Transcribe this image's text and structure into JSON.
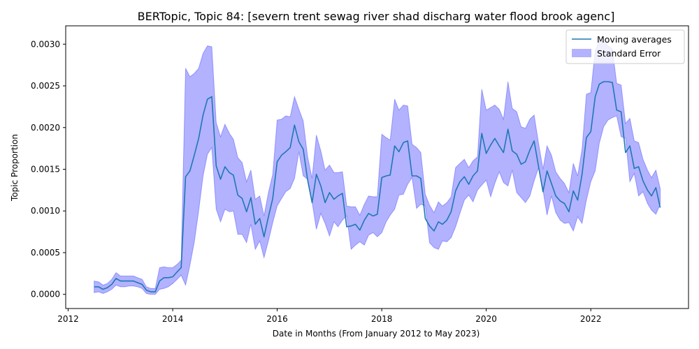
{
  "chart_data": {
    "type": "line",
    "title": "BERTopic, Topic 84: [severn trent sewag river shad discharg water flood brook agenc]",
    "xlabel": "Date in Months (From January 2012 to May 2023)",
    "ylabel": "Topic Proportion",
    "xlim": [
      "2011-12-15",
      "2023-11-15"
    ],
    "ylim": [
      -0.00017,
      0.00322
    ],
    "x_ticks": [
      "2012",
      "2014",
      "2016",
      "2018",
      "2020",
      "2022"
    ],
    "y_ticks": [
      "0.0000",
      "0.0005",
      "0.0010",
      "0.0015",
      "0.0020",
      "0.0025",
      "0.0030"
    ],
    "legend_position": "top-right",
    "grid": false,
    "colors": {
      "line": "#1f77b4",
      "band": "#0000ff"
    },
    "series": [
      {
        "name": "Moving averages",
        "kind": "line"
      },
      {
        "name": "Standard Error",
        "kind": "band"
      }
    ],
    "x": [
      "2012-07",
      "2012-08",
      "2012-09",
      "2012-10",
      "2012-11",
      "2012-12",
      "2013-01",
      "2013-02",
      "2013-03",
      "2013-04",
      "2013-05",
      "2013-06",
      "2013-07",
      "2013-08",
      "2013-09",
      "2013-10",
      "2013-11",
      "2013-12",
      "2014-01",
      "2014-02",
      "2014-03",
      "2014-04",
      "2014-05",
      "2014-06",
      "2014-07",
      "2014-08",
      "2014-09",
      "2014-10",
      "2014-11",
      "2014-12",
      "2015-01",
      "2015-02",
      "2015-03",
      "2015-04",
      "2015-05",
      "2015-06",
      "2015-07",
      "2015-08",
      "2015-09",
      "2015-10",
      "2015-11",
      "2015-12",
      "2016-01",
      "2016-02",
      "2016-03",
      "2016-04",
      "2016-05",
      "2016-06",
      "2016-07",
      "2016-08",
      "2016-09",
      "2016-10",
      "2016-11",
      "2016-12",
      "2017-01",
      "2017-02",
      "2017-03",
      "2017-04",
      "2017-05",
      "2017-06",
      "2017-07",
      "2017-08",
      "2017-09",
      "2017-10",
      "2017-11",
      "2017-12",
      "2018-01",
      "2018-02",
      "2018-03",
      "2018-04",
      "2018-05",
      "2018-06",
      "2018-07",
      "2018-08",
      "2018-09",
      "2018-10",
      "2018-11",
      "2018-12",
      "2019-01",
      "2019-02",
      "2019-03",
      "2019-04",
      "2019-05",
      "2019-06",
      "2019-07",
      "2019-08",
      "2019-09",
      "2019-10",
      "2019-11",
      "2019-12",
      "2020-01",
      "2020-02",
      "2020-03",
      "2020-04",
      "2020-05",
      "2020-06",
      "2020-07",
      "2020-08",
      "2020-09",
      "2020-10",
      "2020-11",
      "2020-12",
      "2021-01",
      "2021-02",
      "2021-03",
      "2021-04",
      "2021-05",
      "2021-06",
      "2021-07",
      "2021-08",
      "2021-09",
      "2021-10",
      "2021-11",
      "2021-12",
      "2022-01",
      "2022-02",
      "2022-03",
      "2022-04",
      "2022-05",
      "2022-06",
      "2022-07",
      "2022-08",
      "2022-09",
      "2022-10",
      "2022-11",
      "2022-12",
      "2023-01",
      "2023-02",
      "2023-03",
      "2023-04",
      "2023-05"
    ],
    "moving_average": [
      9e-05,
      9e-05,
      6e-05,
      8e-05,
      0.00012,
      0.00019,
      0.00016,
      0.00016,
      0.00016,
      0.00016,
      0.00014,
      0.00012,
      5e-05,
      3e-05,
      3e-05,
      0.00016,
      0.0002,
      0.0002,
      0.00021,
      0.00027,
      0.00032,
      0.00141,
      0.00148,
      0.00167,
      0.00187,
      0.00215,
      0.00234,
      0.00237,
      0.00154,
      0.00138,
      0.00153,
      0.00146,
      0.00143,
      0.00119,
      0.00115,
      0.00099,
      0.00116,
      0.00084,
      0.00091,
      0.00069,
      0.00093,
      0.00115,
      0.00159,
      0.00167,
      0.00171,
      0.00176,
      0.00203,
      0.00183,
      0.00174,
      0.00137,
      0.0011,
      0.00144,
      0.0013,
      0.0011,
      0.00122,
      0.00114,
      0.00118,
      0.00121,
      0.00081,
      0.00082,
      0.00084,
      0.00077,
      0.00089,
      0.00097,
      0.00094,
      0.00096,
      0.0014,
      0.00142,
      0.00143,
      0.00178,
      0.00171,
      0.00182,
      0.00184,
      0.00142,
      0.00142,
      0.00139,
      0.00091,
      0.00082,
      0.00076,
      0.00087,
      0.00084,
      0.00089,
      0.00099,
      0.00124,
      0.00135,
      0.00141,
      0.00132,
      0.00142,
      0.00148,
      0.00193,
      0.00169,
      0.00179,
      0.00187,
      0.00178,
      0.0017,
      0.00198,
      0.00172,
      0.00168,
      0.00156,
      0.00159,
      0.00173,
      0.00184,
      0.00153,
      0.00123,
      0.00148,
      0.00133,
      0.00118,
      0.00112,
      0.00109,
      0.00099,
      0.00124,
      0.00113,
      0.00144,
      0.00188,
      0.00195,
      0.00237,
      0.00252,
      0.00255,
      0.00255,
      0.00254,
      0.00221,
      0.00219,
      0.0017,
      0.00178,
      0.00151,
      0.00153,
      0.00136,
      0.00125,
      0.00118,
      0.00128,
      0.00104
    ],
    "se_lower": [
      2e-05,
      3e-05,
      1e-05,
      3e-05,
      6e-05,
      0.00011,
      9e-05,
      9e-05,
      0.0001,
      0.0001,
      9e-05,
      7e-05,
      1e-05,
      0.0,
      0.0,
      6e-05,
      7e-05,
      9e-05,
      0.00013,
      0.00018,
      0.00023,
      0.00011,
      0.00035,
      0.00063,
      0.001,
      0.00142,
      0.00168,
      0.00176,
      0.00102,
      0.00087,
      0.00102,
      0.00099,
      0.001,
      0.00072,
      0.00072,
      0.00062,
      0.00084,
      0.00054,
      0.00064,
      0.00044,
      0.00064,
      0.00086,
      0.00106,
      0.00115,
      0.00123,
      0.00127,
      0.00139,
      0.00171,
      0.00142,
      0.00138,
      0.00111,
      0.00078,
      0.00097,
      0.00085,
      0.0007,
      0.00087,
      0.00081,
      0.00089,
      0.00094,
      0.00054,
      0.00059,
      0.00063,
      0.00059,
      0.00071,
      0.00074,
      0.00069,
      0.00074,
      0.00087,
      0.00095,
      0.00102,
      0.00119,
      0.0012,
      0.00132,
      0.0014,
      0.00103,
      0.00108,
      0.00106,
      0.00062,
      0.00056,
      0.00054,
      0.00064,
      0.00063,
      0.00068,
      0.00081,
      0.00097,
      0.00113,
      0.00119,
      0.00111,
      0.00125,
      0.00131,
      0.00137,
      0.00117,
      0.00133,
      0.00147,
      0.00134,
      0.0013,
      0.00149,
      0.00122,
      0.00116,
      0.0011,
      0.00118,
      0.00136,
      0.00152,
      0.00125,
      0.00095,
      0.00118,
      0.00098,
      0.00089,
      0.00085,
      0.00086,
      0.00076,
      0.00093,
      0.00085,
      0.00113,
      0.00135,
      0.00148,
      0.00181,
      0.00201,
      0.00209,
      0.00212,
      0.00214,
      0.00189,
      0.00187,
      0.00135,
      0.00145,
      0.00118,
      0.00123,
      0.00109,
      0.00101,
      0.00096,
      0.00108,
      0.00083
    ],
    "se_upper": [
      0.00016,
      0.00015,
      0.00011,
      0.00013,
      0.00018,
      0.00026,
      0.00022,
      0.00022,
      0.00022,
      0.00022,
      0.0002,
      0.00018,
      9e-05,
      7e-05,
      7e-05,
      0.00032,
      0.00033,
      0.00032,
      0.00032,
      0.00036,
      0.00041,
      0.00271,
      0.00261,
      0.00265,
      0.00271,
      0.00289,
      0.00298,
      0.00297,
      0.00206,
      0.00189,
      0.00204,
      0.00193,
      0.00186,
      0.00164,
      0.00158,
      0.00135,
      0.00149,
      0.00114,
      0.00118,
      0.00094,
      0.00122,
      0.00144,
      0.00209,
      0.0021,
      0.00214,
      0.00213,
      0.00237,
      0.00222,
      0.00208,
      0.00165,
      0.00139,
      0.00191,
      0.00172,
      0.00149,
      0.00155,
      0.00146,
      0.00146,
      0.00147,
      0.00106,
      0.00105,
      0.00105,
      0.00095,
      0.00108,
      0.00118,
      0.00117,
      0.00117,
      0.00192,
      0.00188,
      0.00185,
      0.00234,
      0.00221,
      0.00227,
      0.00226,
      0.0018,
      0.00176,
      0.0017,
      0.0012,
      0.00107,
      0.00098,
      0.00111,
      0.00106,
      0.0011,
      0.00117,
      0.00152,
      0.00157,
      0.00162,
      0.00152,
      0.0016,
      0.00165,
      0.00246,
      0.00221,
      0.00224,
      0.00227,
      0.00222,
      0.0021,
      0.00255,
      0.00223,
      0.00219,
      0.00201,
      0.00199,
      0.0021,
      0.00215,
      0.00181,
      0.0015,
      0.00178,
      0.00167,
      0.00147,
      0.00139,
      0.00133,
      0.00122,
      0.00157,
      0.00142,
      0.00174,
      0.0024,
      0.00242,
      0.00292,
      0.00304,
      0.00303,
      0.00298,
      0.00294,
      0.00253,
      0.00251,
      0.00205,
      0.00211,
      0.00184,
      0.00182,
      0.00162,
      0.00149,
      0.0014,
      0.00149,
      0.00127
    ]
  }
}
